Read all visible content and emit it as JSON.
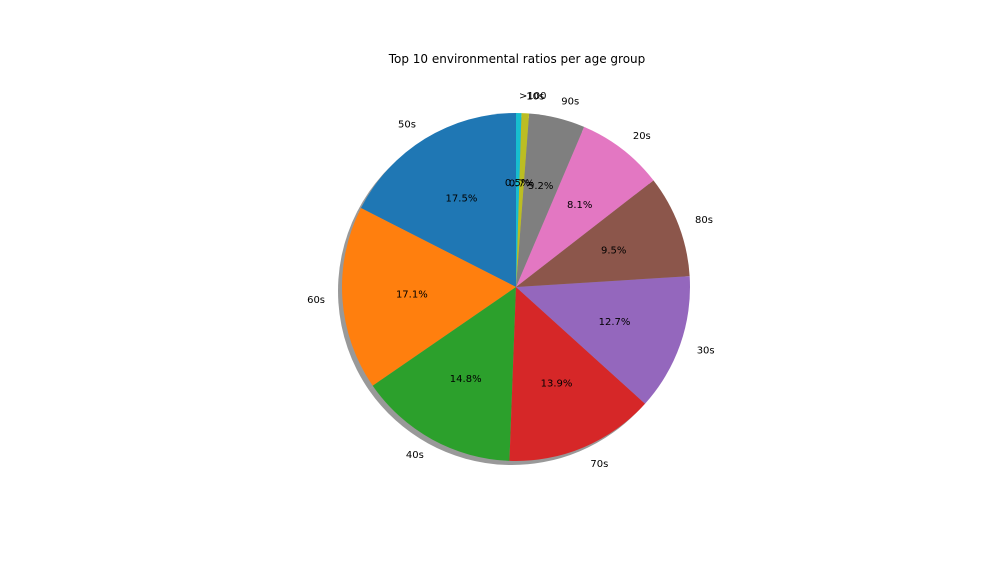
{
  "chart_data": {
    "type": "pie",
    "title": "Top 10 environmental ratios per age group",
    "categories": [
      "50s",
      "60s",
      "40s",
      "70s",
      "30s",
      "80s",
      "20s",
      "90s",
      "10s",
      ">100"
    ],
    "values": [
      17.5,
      17.1,
      14.8,
      13.9,
      12.7,
      9.5,
      8.1,
      5.2,
      0.7,
      0.5
    ],
    "percent_labels": [
      "17.5%",
      "17.1%",
      "14.8%",
      "13.9%",
      "12.7%",
      "9.5%",
      "8.1%",
      "5.2%",
      "0.7%",
      "0.5%"
    ],
    "colors": [
      "#1f77b4",
      "#ff7f0e",
      "#2ca02c",
      "#d62728",
      "#9467bd",
      "#8c564b",
      "#e377c2",
      "#7f7f7f",
      "#bcbd22",
      "#17becf"
    ],
    "start_angle_deg": 90,
    "direction": "counterclockwise",
    "shadow": true
  }
}
